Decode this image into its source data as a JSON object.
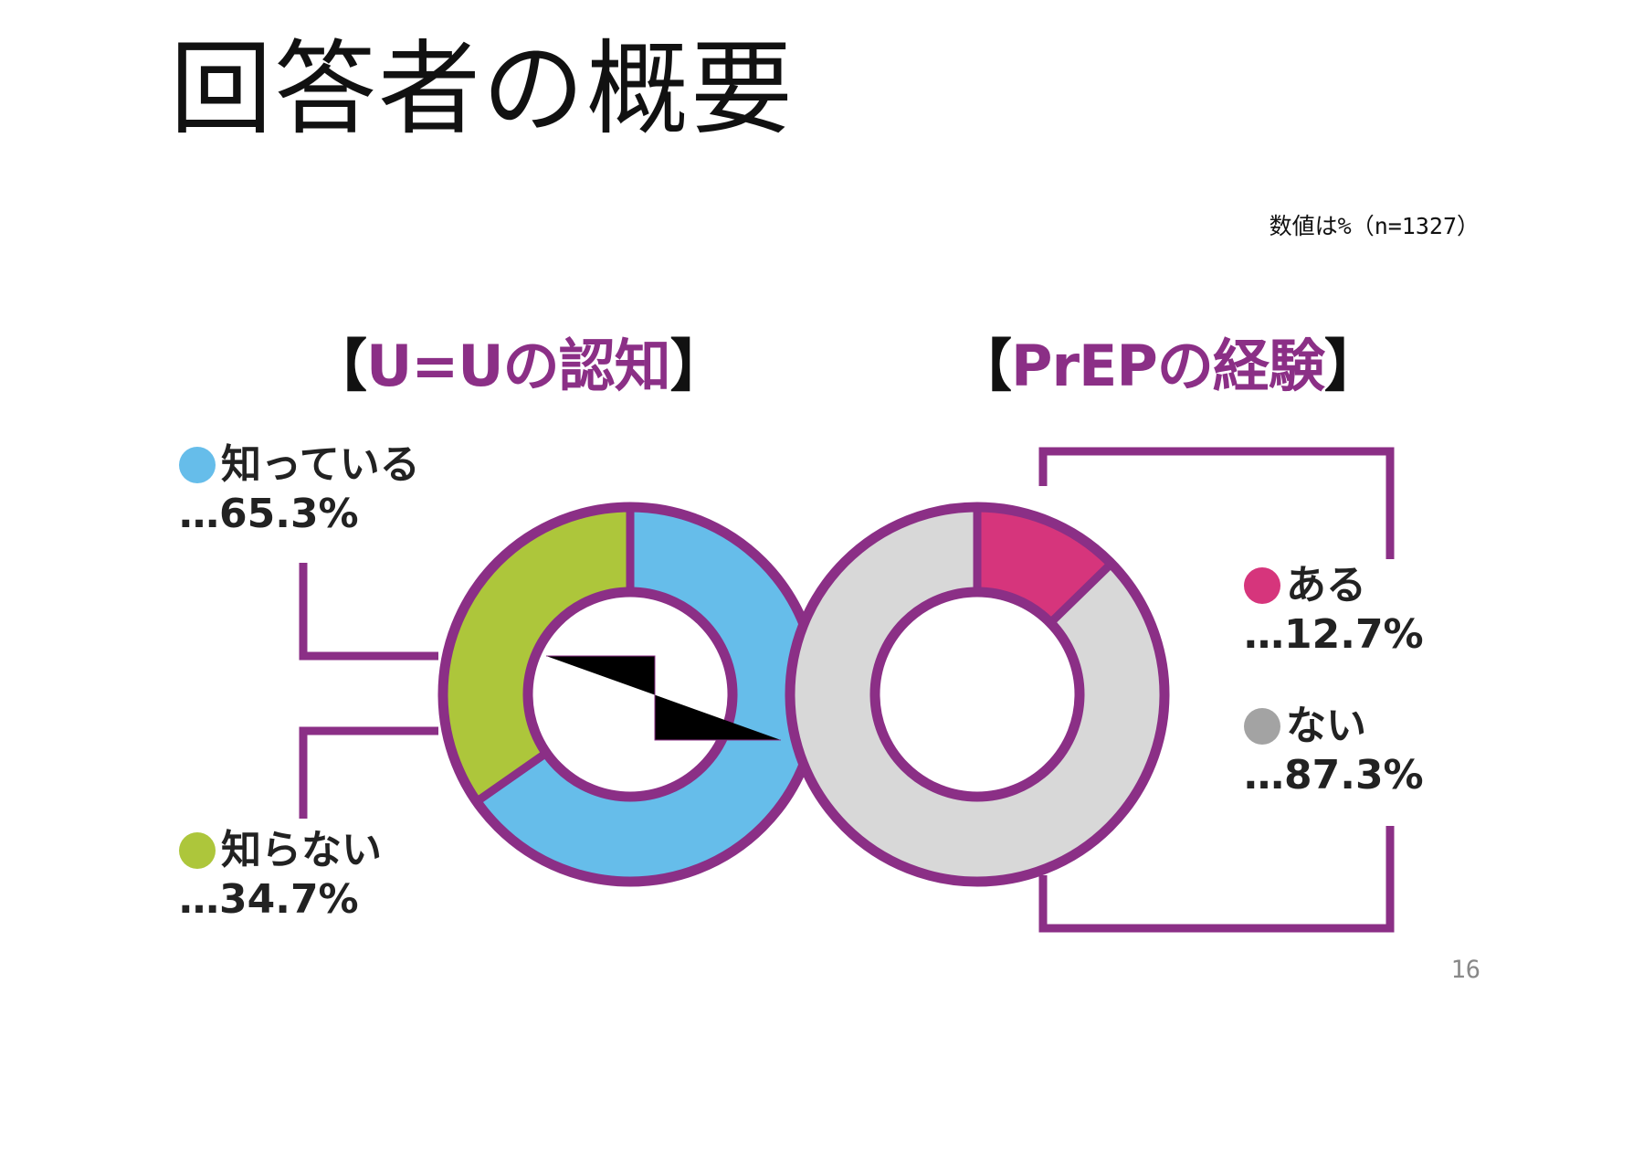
{
  "page": {
    "title": "回答者の概要",
    "note": "数値は%（n=1327）",
    "page_number": "16"
  },
  "colors": {
    "frame": "#8b2f86",
    "know": "#66bdea",
    "notknow": "#adc63b",
    "aru": "#d6357c",
    "nai": "#d8d8d8",
    "nai_dot": "#a3a3a3"
  },
  "chart_data": [
    {
      "type": "pie",
      "variant": "donut",
      "title_open": "【",
      "title_text": "U=Uの認知",
      "title_close": "】",
      "slices": [
        {
          "label": "知っている",
          "value": 65.3,
          "value_text": "…65.3%"
        },
        {
          "label": "知らない",
          "value": 34.7,
          "value_text": "…34.7%"
        }
      ]
    },
    {
      "type": "pie",
      "variant": "donut",
      "title_open": "【",
      "title_text": "PrEPの経験",
      "title_close": "】",
      "slices": [
        {
          "label": "ある",
          "value": 12.7,
          "value_text": "…12.7%"
        },
        {
          "label": "ない",
          "value": 87.3,
          "value_text": "…87.3%"
        }
      ]
    }
  ]
}
